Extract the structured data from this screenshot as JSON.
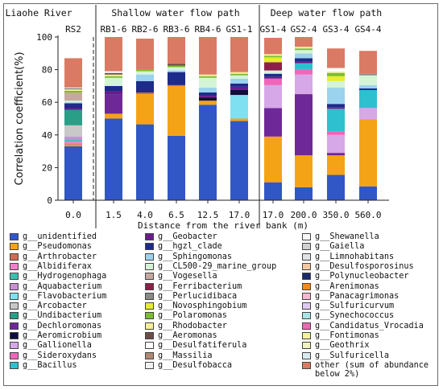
{
  "chart_data": {
    "type": "bar",
    "stacked": true,
    "ylabel": "Correlation coefficient(%)",
    "xlabel": "Distance from the river bank (m)",
    "ylim": [
      0,
      100
    ],
    "yticks": [
      "0",
      "20",
      "40",
      "60",
      "80",
      "100"
    ],
    "group_headers": [
      "Liaohe River",
      "Shallow water flow path",
      "Deep water flow path"
    ],
    "categories": [
      "RS2",
      "RB1-6",
      "RB2-6",
      "RB3-6",
      "RB4-6",
      "GS1-1",
      "GS1-4",
      "GS2-4",
      "GS3-4",
      "GS4-4"
    ],
    "distances": [
      "0.0",
      "1.5",
      "4.0",
      "6.5",
      "12.5",
      "17.0",
      "17.0",
      "200.0",
      "350.0",
      "560.0"
    ],
    "grid": false,
    "legend_position": "bottom",
    "series": [
      {
        "name": "g__unidentified",
        "color": "#3157c6",
        "values": [
          33,
          50,
          46.5,
          39.5,
          58.5,
          48.5,
          11,
          8,
          15.5,
          8.5
        ]
      },
      {
        "name": "g__Pseudomonas",
        "color": "#f5a316",
        "values": [
          0.8,
          3,
          18.5,
          30.5,
          2.5,
          1.5,
          28,
          19.5,
          12,
          41
        ]
      },
      {
        "name": "g__Arthrobacter",
        "color": "#cf6b55",
        "values": [
          0.6,
          0,
          1,
          0.5,
          0,
          0,
          0,
          0,
          0,
          0
        ]
      },
      {
        "name": "g__Albidiferax",
        "color": "#ee82c6",
        "values": [
          1.5,
          0,
          0,
          0,
          0,
          0,
          0,
          0,
          0,
          0
        ]
      },
      {
        "name": "g__Hydrogenophaga",
        "color": "#3cc0b0",
        "values": [
          1,
          0,
          0,
          0,
          0,
          0,
          0,
          0,
          0,
          0
        ]
      },
      {
        "name": "g__Aquabacterium",
        "color": "#c790d0",
        "values": [
          2,
          0,
          0,
          0,
          0,
          0,
          0,
          0,
          0,
          0
        ]
      },
      {
        "name": "g__Flavobacterium",
        "color": "#7ee0f0",
        "values": [
          0,
          0,
          0,
          0,
          0,
          14.5,
          0,
          0,
          0,
          0
        ]
      },
      {
        "name": "g__Arcobacter",
        "color": "#c8c8c8",
        "values": [
          7,
          0,
          0,
          0,
          0,
          0,
          0,
          0,
          0,
          0
        ]
      },
      {
        "name": "g__Undibacterium",
        "color": "#2a9e86",
        "values": [
          9.5,
          0,
          0,
          0,
          0,
          0,
          0,
          0,
          0,
          0
        ]
      },
      {
        "name": "g__Dechloromonas",
        "color": "#6f2897",
        "values": [
          0,
          12,
          0,
          0,
          0,
          0,
          17.5,
          37.5,
          1.5,
          0
        ]
      },
      {
        "name": "g__Aeromicrobium",
        "color": "#0f0f3a",
        "values": [
          0,
          0,
          0,
          0,
          2,
          3,
          0,
          0,
          0,
          0
        ]
      },
      {
        "name": "g__Gallionella",
        "color": "#d6a8e8",
        "values": [
          0,
          0,
          0,
          0,
          0,
          0,
          14,
          12,
          11,
          7
        ]
      },
      {
        "name": "g__Sideroxydans",
        "color": "#f066b8",
        "values": [
          0,
          0,
          0,
          0,
          0,
          0,
          4,
          3,
          2,
          0
        ]
      },
      {
        "name": "g__Bacillus",
        "color": "#2ec0cf",
        "values": [
          0,
          0,
          0,
          0,
          0,
          0,
          0,
          4,
          14,
          11
        ]
      },
      {
        "name": "g__Geobacter",
        "color": "#6e1a8e",
        "values": [
          1,
          2,
          0,
          0,
          1,
          2,
          1,
          1,
          1,
          0
        ]
      },
      {
        "name": "g__hgzl_clade",
        "color": "#1d2b8a",
        "values": [
          3,
          3,
          7,
          8,
          2,
          2,
          2,
          2,
          2,
          1
        ]
      },
      {
        "name": "g__Sphingomonas",
        "color": "#9bd3ef",
        "values": [
          0.6,
          0,
          4,
          1,
          3,
          3,
          0,
          3,
          10,
          2
        ]
      },
      {
        "name": "g__CL500-29_marine_group",
        "color": "#d4f4d8",
        "values": [
          1,
          5,
          2,
          2,
          6,
          2,
          2,
          2,
          4,
          6
        ]
      },
      {
        "name": "g__Vogesella",
        "color": "#c6a8a0",
        "values": [
          5,
          0,
          0,
          0,
          0,
          0,
          0,
          0,
          0,
          0
        ]
      },
      {
        "name": "g__Ferribacterium",
        "color": "#8e1f4b",
        "values": [
          0,
          0,
          0,
          0,
          0,
          0,
          5,
          0,
          0,
          0
        ]
      },
      {
        "name": "g__Perlucidibaca",
        "color": "#8a8a8a",
        "values": [
          0,
          0,
          0,
          0,
          0,
          0,
          0,
          0,
          0,
          1
        ]
      },
      {
        "name": "g__Novosphingobium",
        "color": "#e7ee2f",
        "values": [
          0,
          0,
          0,
          0,
          0,
          0,
          3,
          0,
          3,
          0
        ]
      },
      {
        "name": "g__Polaromonas",
        "color": "#7bbd33",
        "values": [
          1,
          1,
          1,
          1,
          1,
          1,
          1,
          1,
          2,
          0
        ]
      },
      {
        "name": "g__Rhodobacter",
        "color": "#f7ef96",
        "values": [
          1,
          1,
          0,
          0,
          1,
          1,
          1,
          1,
          1,
          0
        ]
      },
      {
        "name": "g__Aeromonas",
        "color": "#6b4e48",
        "values": [
          0.5,
          1,
          0,
          1,
          0,
          0,
          0,
          0,
          0,
          0
        ]
      },
      {
        "name": "g__Desulfatiferula",
        "color": "#ffffff",
        "values": [
          0.5,
          1,
          0,
          0,
          0,
          0,
          0,
          0,
          2,
          0
        ]
      },
      {
        "name": "g__Massilia",
        "color": "#b08770",
        "values": [
          0,
          0,
          0,
          0,
          0,
          0,
          0,
          0,
          0,
          0
        ]
      },
      {
        "name": "g__Desulfobacca",
        "color": "#f0f0f0",
        "values": [
          0,
          0,
          0,
          0,
          0,
          0,
          0,
          0,
          0,
          0
        ]
      },
      {
        "name": "g__Shewanella",
        "color": "#f7f7f7",
        "values": [
          0,
          0,
          0,
          0,
          0,
          0,
          0,
          0,
          0,
          0
        ]
      },
      {
        "name": "g__Gaiella",
        "color": "#d0d0d0",
        "values": [
          0,
          0,
          0,
          0,
          0,
          0,
          0,
          0,
          0,
          0
        ]
      },
      {
        "name": "g__Limnohabitans",
        "color": "#e2e2e2",
        "values": [
          0,
          0,
          0,
          0,
          0,
          0,
          0,
          0,
          0,
          0
        ]
      },
      {
        "name": "g__Desulfosporosinus",
        "color": "#f3c7a0",
        "values": [
          0,
          0,
          0,
          0,
          0,
          0,
          0,
          0,
          0,
          0
        ]
      },
      {
        "name": "g__Polynucleobacter",
        "color": "#1a2a6a",
        "values": [
          0,
          0,
          0,
          0,
          0,
          0,
          0,
          0,
          0,
          0
        ]
      },
      {
        "name": "g__Arenimonas",
        "color": "#f08a20",
        "values": [
          0,
          0,
          0,
          0,
          0,
          0,
          0,
          0,
          0,
          0
        ]
      },
      {
        "name": "g__Panacagrimonas",
        "color": "#f5b7d0",
        "values": [
          0,
          0,
          0,
          0,
          0,
          0,
          0,
          0,
          0,
          0
        ]
      },
      {
        "name": "g__Sulfuricurvum",
        "color": "#e0c8f0",
        "values": [
          0,
          0,
          0,
          0,
          0,
          0,
          0,
          0,
          0,
          0
        ]
      },
      {
        "name": "g__Synechococcus",
        "color": "#a9e4e8",
        "values": [
          0,
          0,
          0,
          0,
          0,
          0,
          0,
          0,
          0,
          0
        ]
      },
      {
        "name": "g__Candidatus_Vrocadia",
        "color": "#e96ab2",
        "values": [
          0,
          0,
          0,
          0,
          0,
          0,
          0,
          0,
          0,
          0
        ]
      },
      {
        "name": "g__Fontimonas",
        "color": "#f6f0a0",
        "values": [
          0,
          0,
          0,
          0,
          0,
          0,
          0,
          0,
          0,
          0
        ]
      },
      {
        "name": "g__Geothrix",
        "color": "#f0f4c0",
        "values": [
          0,
          0,
          0,
          0,
          0,
          0,
          0,
          0,
          0,
          0
        ]
      },
      {
        "name": "g__Sulfuricella",
        "color": "#d8eaf0",
        "values": [
          0,
          0,
          0,
          0,
          0,
          0,
          0,
          0,
          0,
          0
        ]
      },
      {
        "name": "other (sum of abundance below 2%)",
        "color": "#da7a64",
        "values": [
          18,
          22,
          19,
          16.5,
          23,
          23,
          10,
          6,
          12,
          14
        ]
      }
    ]
  }
}
